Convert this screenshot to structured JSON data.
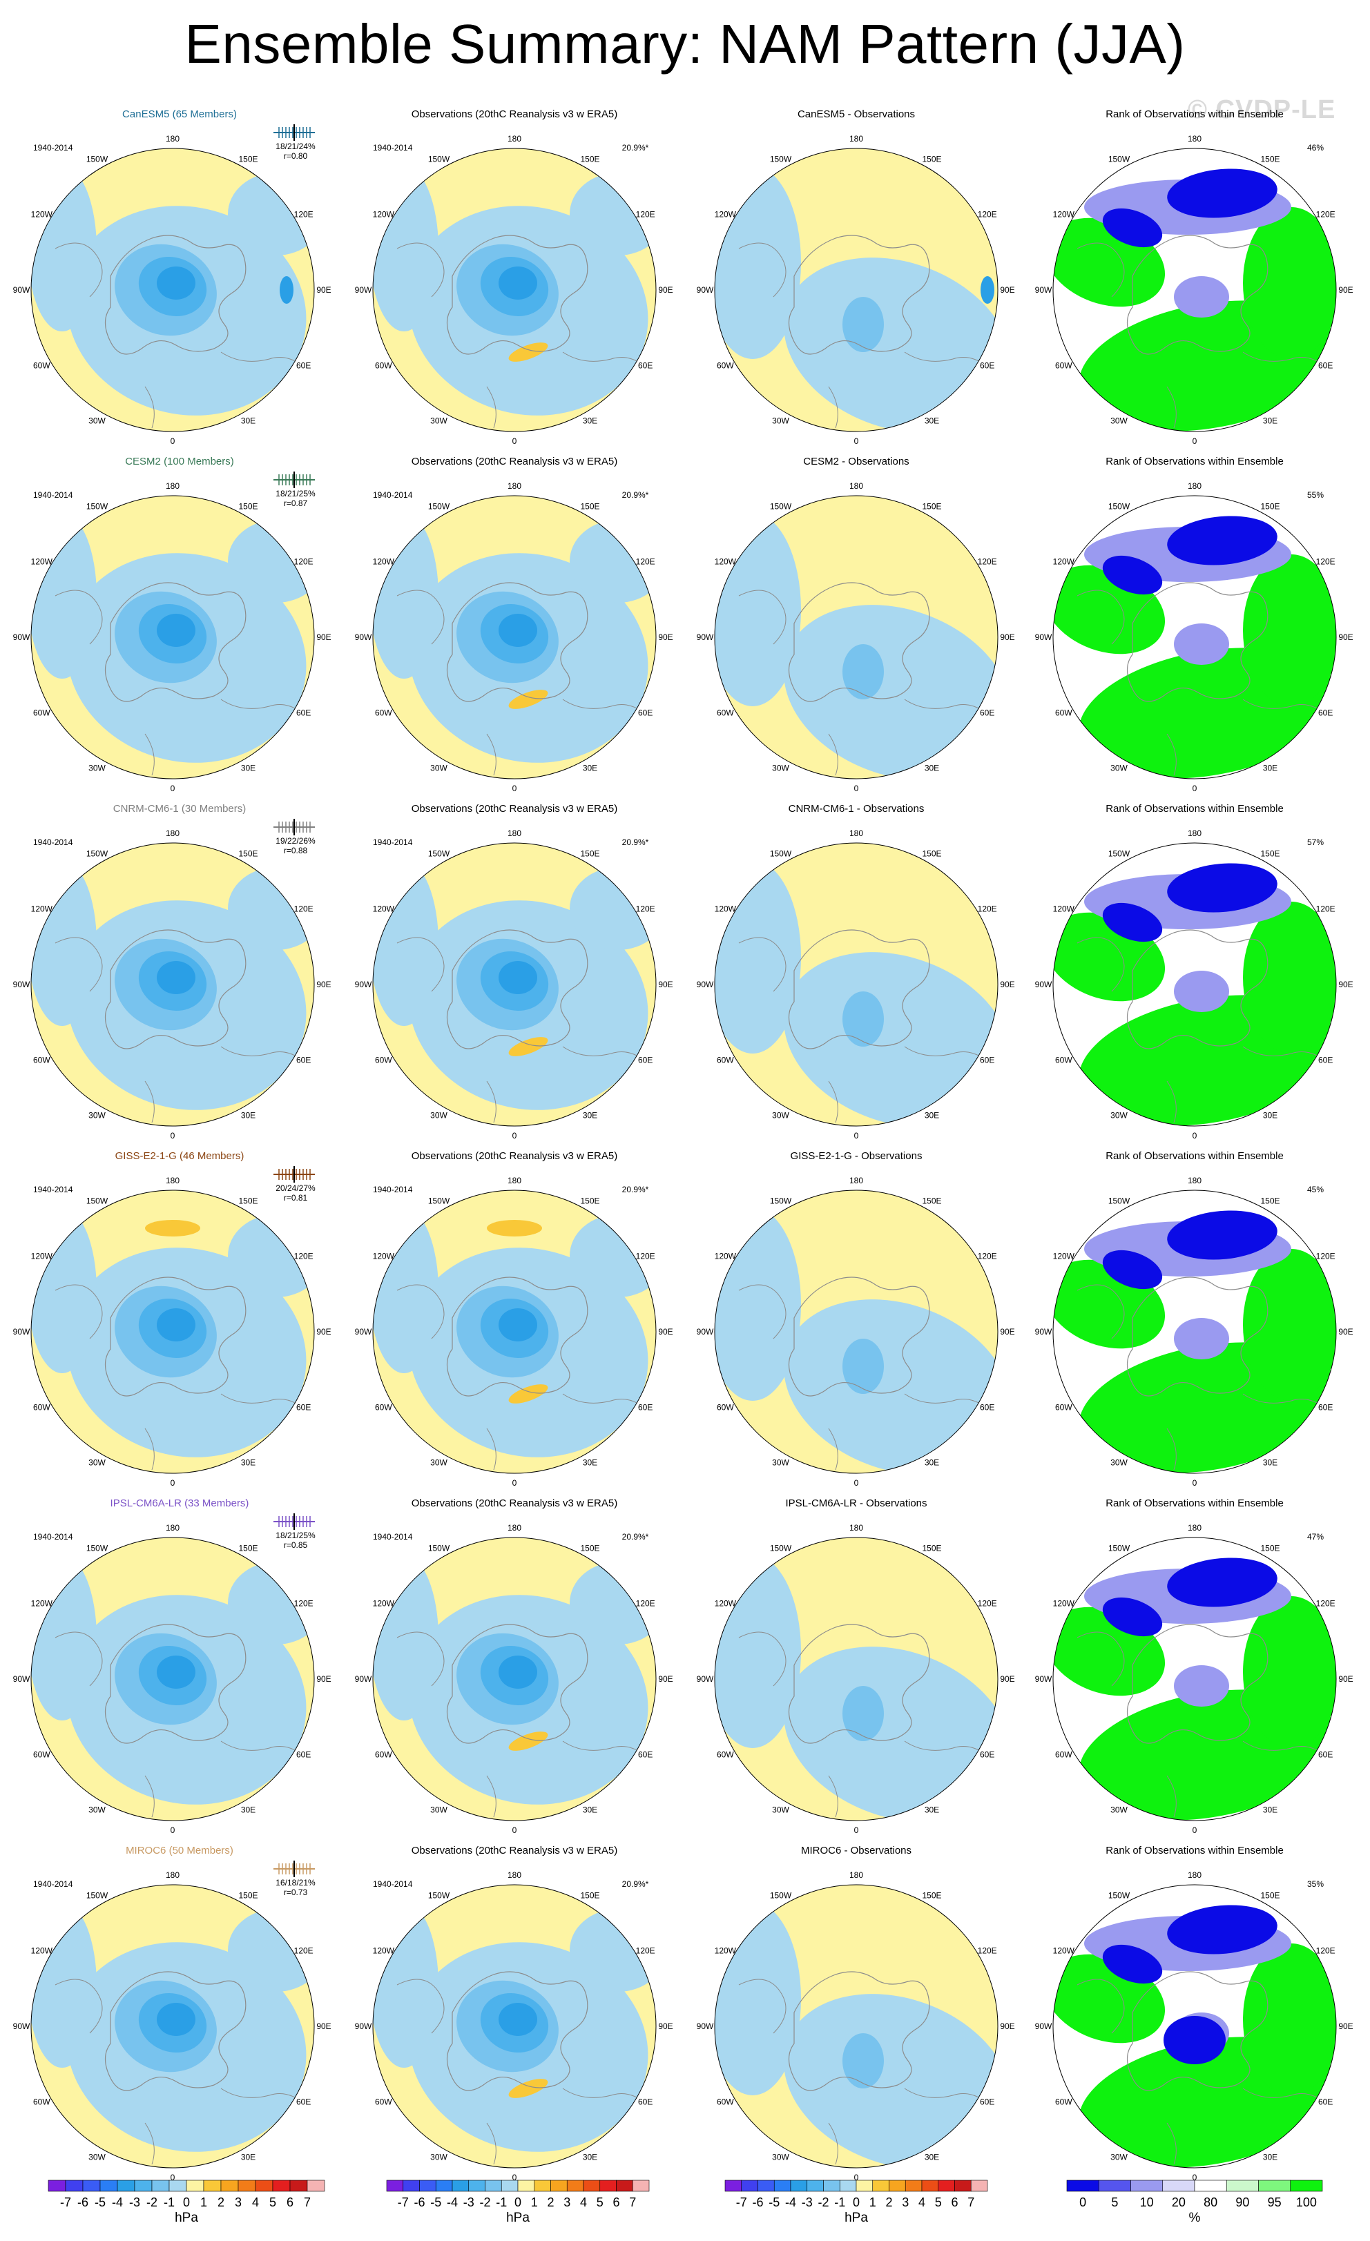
{
  "title": "Ensemble Summary: NAM Pattern (JJA)",
  "copyright": "© CVDP-LE",
  "colors": {
    "yellow": "#fdf4a3",
    "lightblue": "#a9d8f0",
    "blue1": "#78c3ee",
    "blue2": "#4db2ec",
    "blue3": "#2a9fe6",
    "orange": "#f9c838",
    "green": "#0ef20e",
    "rank_blue": "#0b0be6",
    "rank_lightblue": "#9a9af0",
    "coast": "#8c8c8c"
  },
  "lon_labels": [
    "180",
    "150E",
    "120E",
    "90E",
    "60E",
    "30E",
    "0",
    "30W",
    "60W",
    "90W",
    "120W",
    "150W"
  ],
  "years": "1940-2014",
  "obs_title": "Observations (20thC Reanalysis v3 w ERA5)",
  "obs_pct": "20.9%*",
  "rank_title": "Rank of Observations within Ensemble",
  "rows": [
    {
      "model": "CanESM5 (65 Members)",
      "model_color": "#1f6f96",
      "stats": "18/21/24%",
      "r": "r=0.80",
      "diff_title": "CanESM5 - Observations",
      "rank_pct": "46%"
    },
    {
      "model": "CESM2 (100 Members)",
      "model_color": "#3a7a58",
      "stats": "18/21/25%",
      "r": "r=0.87",
      "diff_title": "CESM2 - Observations",
      "rank_pct": "55%"
    },
    {
      "model": "CNRM-CM6-1 (30 Members)",
      "model_color": "#808080",
      "stats": "19/22/26%",
      "r": "r=0.88",
      "diff_title": "CNRM-CM6-1 - Observations",
      "rank_pct": "57%"
    },
    {
      "model": "GISS-E2-1-G (46 Members)",
      "model_color": "#8b4513",
      "stats": "20/24/27%",
      "r": "r=0.81",
      "diff_title": "GISS-E2-1-G - Observations",
      "rank_pct": "45%"
    },
    {
      "model": "IPSL-CM6A-LR (33 Members)",
      "model_color": "#7b52c7",
      "stats": "18/21/25%",
      "r": "r=0.85",
      "diff_title": "IPSL-CM6A-LR - Observations",
      "rank_pct": "47%"
    },
    {
      "model": "MIROC6 (50 Members)",
      "model_color": "#c89a64",
      "stats": "16/18/21%",
      "r": "r=0.73",
      "diff_title": "MIROC6 - Observations",
      "rank_pct": "35%"
    }
  ],
  "colorbar_hpa": {
    "labels": [
      "-7",
      "-6",
      "-5",
      "-4",
      "-3",
      "-2",
      "-1",
      "0",
      "1",
      "2",
      "3",
      "4",
      "5",
      "6",
      "7"
    ],
    "colors": [
      "#7b1fe0",
      "#4040f0",
      "#3a5cf5",
      "#2a7ef5",
      "#2a9fe6",
      "#4db2ec",
      "#78c3ee",
      "#a9d8f0",
      "#fdf4a3",
      "#f9c838",
      "#f7a51f",
      "#f27c18",
      "#ec4e16",
      "#e41f1f",
      "#c81a1a",
      "#f5b3b3"
    ],
    "unit": "hPa"
  },
  "colorbar_rank": {
    "labels": [
      "0",
      "5",
      "10",
      "20",
      "80",
      "90",
      "95",
      "100"
    ],
    "colors": [
      "#0b0be6",
      "#5555ee",
      "#9a9af0",
      "#d8d8f8",
      "#ffffff",
      "#ccf8cc",
      "#7ef77e",
      "#0ef20e"
    ],
    "unit": "%"
  },
  "chart_data": [
    {
      "type": "heatmap",
      "panel": "model ensemble mean",
      "model": "CanESM5",
      "pattern_rank_stats": "18/21/24%",
      "pattern_correlation": 0.8,
      "period": "1940-2014",
      "units": "hPa"
    },
    {
      "type": "heatmap",
      "panel": "observations",
      "source": "20thC Reanalysis v3 w ERA5",
      "explained_variance": "20.9%*",
      "units": "hPa"
    },
    {
      "type": "heatmap",
      "panel": "rank of observations within ensemble",
      "units": "%",
      "values_by_row": [
        46,
        55,
        57,
        45,
        47,
        35
      ]
    }
  ]
}
